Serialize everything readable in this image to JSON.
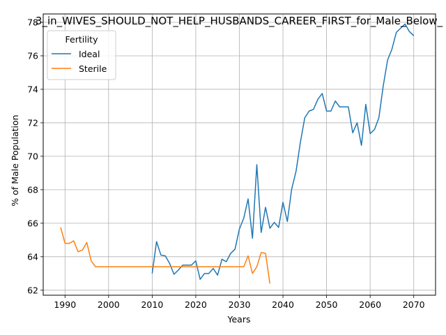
{
  "chart_data": {
    "type": "line",
    "title": "3_in_WIVES_SHOULD_NOT_HELP_HUSBANDS_CAREER_FIRST_for_Male_Below_",
    "xlabel": "Years",
    "ylabel": "% of Male Population",
    "xlim": [
      1985,
      2075
    ],
    "ylim": [
      61.7,
      78.5
    ],
    "xticks": [
      1990,
      2000,
      2010,
      2020,
      2030,
      2040,
      2050,
      2060,
      2070
    ],
    "yticks": [
      62,
      64,
      66,
      68,
      70,
      72,
      74,
      76,
      78
    ],
    "grid": true,
    "legend": {
      "title": "Fertility",
      "placement": "top-left"
    },
    "series": [
      {
        "name": "Ideal",
        "color": "#1f77b4",
        "x": [
          2010,
          2011,
          2012,
          2013,
          2014,
          2015,
          2016,
          2017,
          2018,
          2019,
          2020,
          2021,
          2022,
          2023,
          2024,
          2025,
          2026,
          2027,
          2028,
          2029,
          2030,
          2031,
          2032,
          2033,
          2034,
          2035,
          2036,
          2037,
          2038,
          2039,
          2040,
          2041,
          2042,
          2043,
          2044,
          2045,
          2046,
          2047,
          2048,
          2049,
          2050,
          2051,
          2052,
          2053,
          2054,
          2055,
          2056,
          2057,
          2058,
          2059,
          2060,
          2061,
          2062,
          2063,
          2064,
          2065,
          2066,
          2067,
          2068,
          2069,
          2070
        ],
        "y": [
          63.0,
          64.9,
          64.1,
          64.05,
          63.6,
          62.95,
          63.2,
          63.5,
          63.5,
          63.5,
          63.75,
          62.65,
          63.0,
          63.0,
          63.3,
          62.9,
          63.85,
          63.7,
          64.2,
          64.45,
          65.65,
          66.3,
          67.45,
          65.1,
          69.5,
          65.45,
          66.95,
          65.7,
          66.05,
          65.75,
          67.25,
          66.1,
          68.05,
          69.1,
          70.85,
          72.3,
          72.7,
          72.8,
          73.4,
          73.75,
          72.7,
          72.7,
          73.3,
          72.95,
          72.95,
          72.95,
          71.4,
          72.0,
          70.65,
          73.1,
          71.35,
          71.6,
          72.3,
          74.2,
          75.75,
          76.4,
          77.4,
          77.65,
          77.9,
          77.45,
          77.2
        ]
      },
      {
        "name": "Sterile",
        "color": "#ff7f0e",
        "x": [
          1989,
          1990,
          1991,
          1992,
          1993,
          1994,
          1995,
          1996,
          1997,
          1998,
          1999,
          2000,
          2001,
          2002,
          2003,
          2004,
          2005,
          2006,
          2007,
          2008,
          2009,
          2010,
          2011,
          2012,
          2013,
          2014,
          2015,
          2016,
          2017,
          2018,
          2019,
          2020,
          2021,
          2022,
          2023,
          2024,
          2025,
          2026,
          2027,
          2028,
          2029,
          2030,
          2031,
          2032,
          2033,
          2034,
          2035,
          2036,
          2037
        ],
        "y": [
          65.75,
          64.8,
          64.8,
          64.95,
          64.3,
          64.4,
          64.85,
          63.75,
          63.4,
          63.4,
          63.4,
          63.4,
          63.4,
          63.4,
          63.4,
          63.4,
          63.4,
          63.4,
          63.4,
          63.4,
          63.4,
          63.4,
          63.4,
          63.4,
          63.4,
          63.4,
          63.4,
          63.4,
          63.4,
          63.4,
          63.4,
          63.4,
          63.4,
          63.4,
          63.4,
          63.4,
          63.4,
          63.4,
          63.4,
          63.4,
          63.4,
          63.4,
          63.4,
          64.05,
          63.0,
          63.4,
          64.25,
          64.2,
          62.4
        ]
      }
    ]
  }
}
